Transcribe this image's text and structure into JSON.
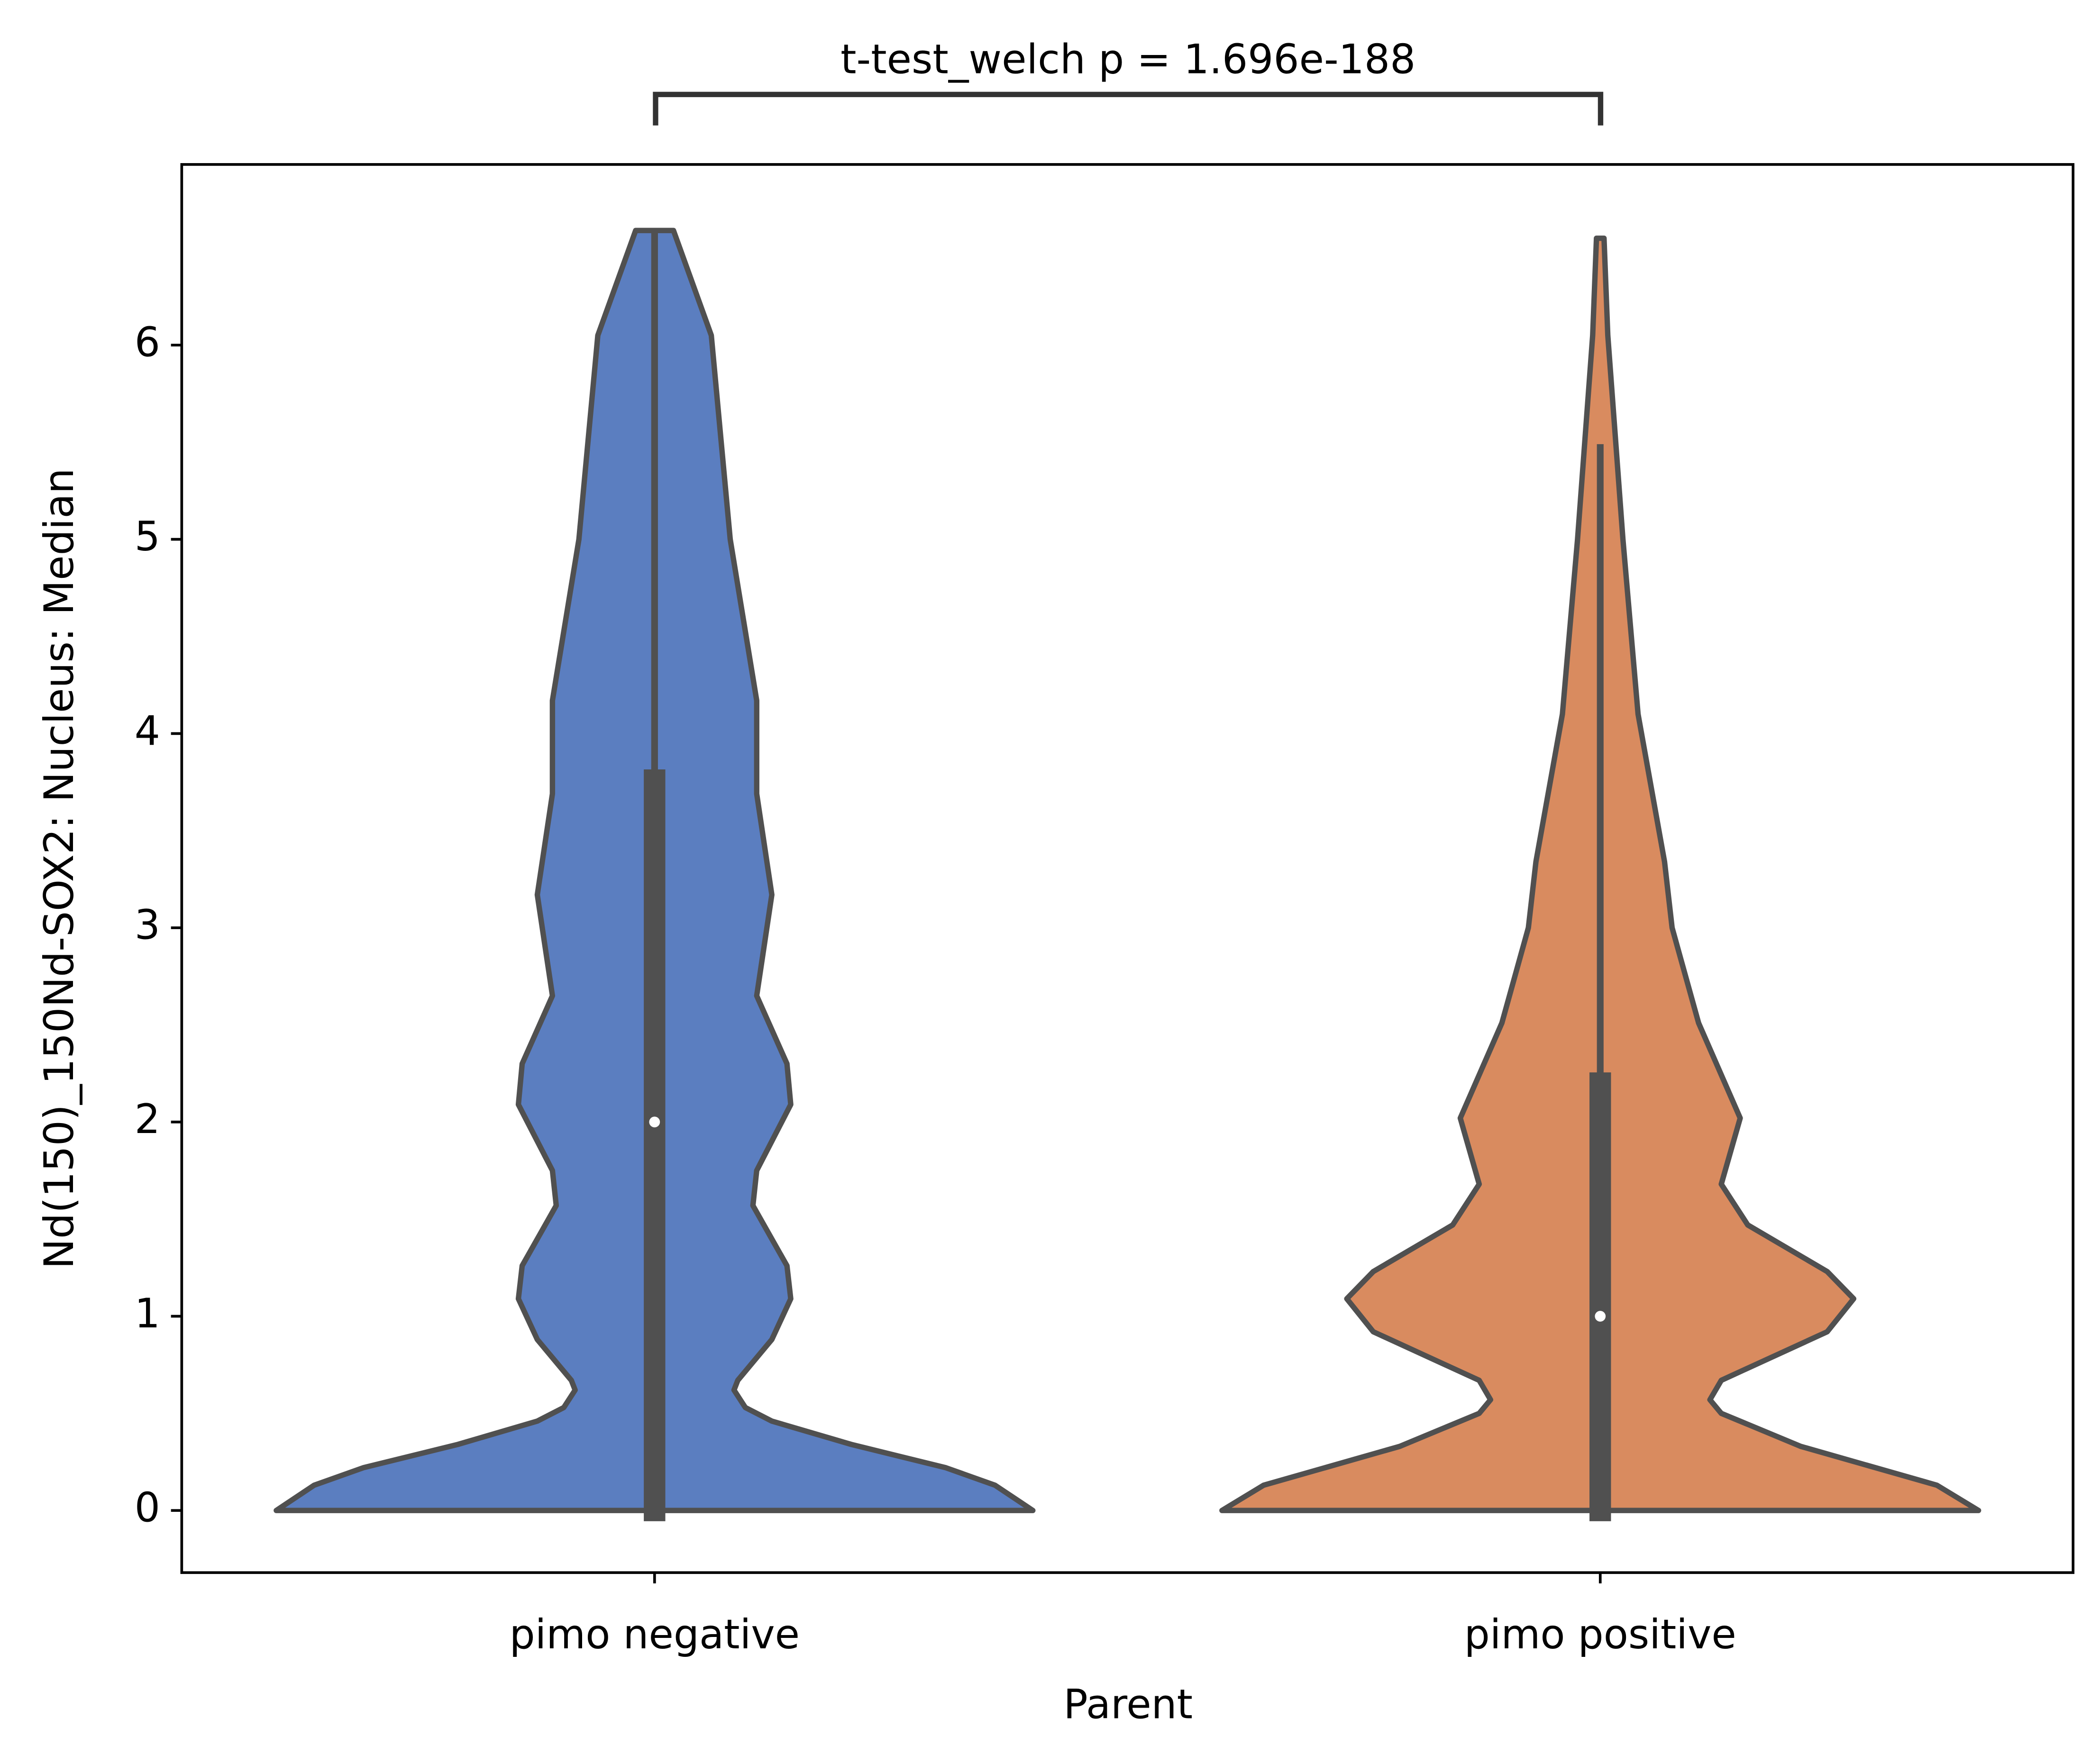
{
  "chart_data": {
    "type": "violin",
    "annotation": "t-test_welch p = 1.696e-188",
    "x_label": "Parent",
    "y_label": "Nd(150)_150Nd-SOX2: Nucleus: Median",
    "categories": [
      "pimo negative",
      "pimo positive"
    ],
    "ylim": [
      -0.32,
      6.93
    ],
    "yticks": [
      0,
      1,
      2,
      3,
      4,
      5,
      6
    ],
    "outline_color": "#505050",
    "violins": [
      {
        "color": "#5b7ec0",
        "median": 2.0,
        "q1": 0,
        "q3": 3.76,
        "whisker_low": 0,
        "whisker_high": 6.59,
        "density": {
          "y": [
            0,
            0.13,
            0.22,
            0.34,
            0.46,
            0.53,
            0.62,
            0.67,
            0.88,
            1.09,
            1.26,
            1.57,
            1.75,
            2.09,
            2.3,
            2.65,
            3.17,
            3.69,
            4.17,
            5.0,
            6.05,
            6.59
          ],
          "width": [
            1.0,
            0.9,
            0.77,
            0.52,
            0.31,
            0.24,
            0.21,
            0.22,
            0.31,
            0.36,
            0.35,
            0.26,
            0.27,
            0.36,
            0.35,
            0.27,
            0.31,
            0.27,
            0.27,
            0.2,
            0.15,
            0.05
          ]
        }
      },
      {
        "color": "#d98b5f",
        "median": 1.0,
        "q1": 0,
        "q3": 2.2,
        "whisker_low": 0,
        "whisker_high": 5.49,
        "density": {
          "y": [
            0,
            0.13,
            0.33,
            0.5,
            0.57,
            0.67,
            0.92,
            1.09,
            1.23,
            1.47,
            1.68,
            2.02,
            2.51,
            3.0,
            3.34,
            4.1,
            5.0,
            6.05,
            6.55
          ],
          "width": [
            1.0,
            0.89,
            0.53,
            0.32,
            0.29,
            0.32,
            0.6,
            0.67,
            0.6,
            0.39,
            0.32,
            0.37,
            0.26,
            0.19,
            0.17,
            0.1,
            0.06,
            0.02,
            0.01
          ]
        }
      }
    ]
  }
}
